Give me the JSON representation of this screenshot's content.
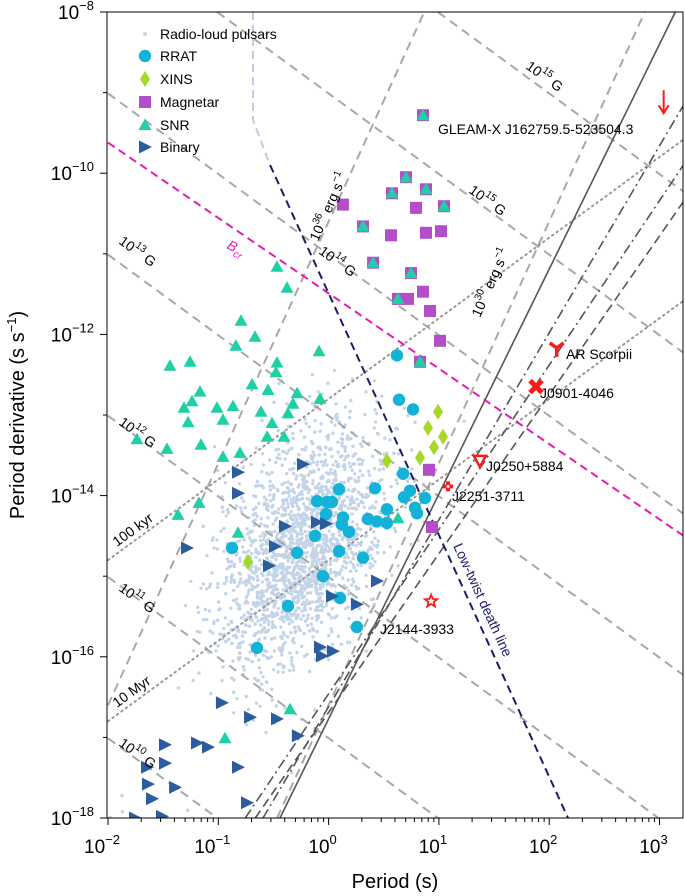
{
  "chart_data": {
    "type": "scatter",
    "xlabel": "Period (s)",
    "ylabel": {
      "base": "Period derivative (s s",
      "exp": "−1",
      "close": ")"
    },
    "x_scale": "log",
    "y_scale": "log",
    "xlim_log10": [
      -2,
      3.22
    ],
    "ylim_log10": [
      -18,
      -8
    ],
    "x_ticks": [
      {
        "base": "10",
        "exp": "−2",
        "v": -2
      },
      {
        "base": "10",
        "exp": "−1",
        "v": -1
      },
      {
        "base": "10",
        "exp": "0",
        "v": 0
      },
      {
        "base": "10",
        "exp": "1",
        "v": 1
      },
      {
        "base": "10",
        "exp": "2",
        "v": 2
      },
      {
        "base": "10",
        "exp": "3",
        "v": 3
      }
    ],
    "y_ticks": [
      {
        "base": "10",
        "exp": "−8",
        "v": -8
      },
      {
        "base": "10",
        "exp": "−10",
        "v": -10
      },
      {
        "base": "10",
        "exp": "−12",
        "v": -12
      },
      {
        "base": "10",
        "exp": "−14",
        "v": -14
      },
      {
        "base": "10",
        "exp": "−16",
        "v": -16
      },
      {
        "base": "10",
        "exp": "−18",
        "v": -18
      }
    ],
    "legend": {
      "placement": "top-left",
      "entries": [
        {
          "key": "pulsars",
          "label": "Radio-loud pulsars"
        },
        {
          "key": "rrat",
          "label": "RRAT"
        },
        {
          "key": "xins",
          "label": "XINS"
        },
        {
          "key": "magnetar",
          "label": "Magnetar"
        },
        {
          "key": "snr",
          "label": "SNR"
        },
        {
          "key": "binary",
          "label": "Binary"
        }
      ]
    },
    "colors": {
      "pulsars": "#c3d4e8",
      "rrat": "#13b3d8",
      "xins": "#a6d82a",
      "magnetar": "#b24fc8",
      "snr": "#1fd0a6",
      "binary": "#2b5d9e",
      "special": "#ff1a1a",
      "deathline": "#1c1c6b",
      "bcr": "#e41bb5",
      "guide": "#a8a8a8",
      "death_dark": "#555555"
    },
    "radio_pulsars_distribution": {
      "note_count": 1900,
      "main": {
        "logP_mean": -0.25,
        "logP_sd": 0.38,
        "logPdot_mean": -14.65,
        "logPdot_sd": 0.75,
        "corr": 0.45
      },
      "msp": {
        "count": 60,
        "logP_mean": -2.4,
        "logP_sd": 0.3,
        "logPdot_mean": -19.3,
        "logPdot_sd": 0.6
      }
    },
    "series_log10": {
      "rrat": [
        [
          0.62,
          -12.26
        ],
        [
          0.638,
          -12.81
        ],
        [
          0.765,
          -12.93
        ],
        [
          0.675,
          -13.73
        ],
        [
          0.738,
          -13.94
        ],
        [
          0.684,
          -14.02
        ],
        [
          0.874,
          -14.03
        ],
        [
          0.783,
          -14.15
        ],
        [
          0.801,
          -14.22
        ],
        [
          0.529,
          -14.17
        ],
        [
          0.421,
          -13.91
        ],
        [
          0.094,
          -13.92
        ],
        [
          -0.105,
          -14.07
        ],
        [
          -0.015,
          -14.08
        ],
        [
          0.031,
          -14.08
        ],
        [
          -0.024,
          -14.23
        ],
        [
          0.131,
          -14.27
        ],
        [
          0.121,
          -14.36
        ],
        [
          0.185,
          -14.45
        ],
        [
          0.357,
          -14.29
        ],
        [
          0.439,
          -14.32
        ],
        [
          0.529,
          -14.34
        ],
        [
          -0.123,
          -14.5
        ],
        [
          -0.876,
          -14.65
        ],
        [
          -0.286,
          -14.71
        ],
        [
          0.094,
          -14.69
        ],
        [
          0.312,
          -14.77
        ],
        [
          -0.051,
          -15.0
        ],
        [
          0.103,
          -15.27
        ],
        [
          -0.368,
          -15.37
        ],
        [
          0.257,
          -15.63
        ],
        [
          -0.649,
          -15.89
        ]
      ],
      "xins": [
        [
          0.992,
          -12.96
        ],
        [
          0.901,
          -13.16
        ],
        [
          1.037,
          -13.27
        ],
        [
          0.956,
          -13.4
        ],
        [
          0.829,
          -13.53
        ],
        [
          0.529,
          -13.57
        ],
        [
          -0.731,
          -14.82
        ]
      ],
      "magnetar": [
        [
          0.856,
          -9.28
        ],
        [
          0.702,
          -10.05
        ],
        [
          0.575,
          -10.25
        ],
        [
          0.883,
          -10.2
        ],
        [
          0.13,
          -10.39
        ],
        [
          0.792,
          -10.43
        ],
        [
          1.046,
          -10.41
        ],
        [
          0.312,
          -10.66
        ],
        [
          0.566,
          -10.77
        ],
        [
          0.883,
          -10.74
        ],
        [
          1.019,
          -10.72
        ],
        [
          0.403,
          -11.11
        ],
        [
          0.747,
          -11.24
        ],
        [
          0.856,
          -11.47
        ],
        [
          0.629,
          -11.56
        ],
        [
          0.72,
          -11.56
        ],
        [
          0.919,
          -11.71
        ],
        [
          1.01,
          -12.08
        ],
        [
          0.829,
          -12.34
        ],
        [
          0.91,
          -13.68
        ],
        [
          0.937,
          -14.39
        ]
      ],
      "snr": [
        [
          0.856,
          -9.28
        ],
        [
          0.702,
          -10.05
        ],
        [
          0.575,
          -10.25
        ],
        [
          0.883,
          -10.2
        ],
        [
          1.046,
          -10.41
        ],
        [
          0.312,
          -10.66
        ],
        [
          0.403,
          -11.11
        ],
        [
          0.747,
          -11.24
        ],
        [
          0.629,
          -11.56
        ],
        [
          0.829,
          -12.34
        ],
        [
          -0.468,
          -11.16
        ],
        [
          -0.377,
          -11.42
        ],
        [
          -0.794,
          -11.83
        ],
        [
          -0.667,
          -12.03
        ],
        [
          -0.84,
          -12.14
        ],
        [
          -0.087,
          -12.21
        ],
        [
          -1.438,
          -12.39
        ],
        [
          -1.256,
          -12.34
        ],
        [
          -0.468,
          -12.35
        ],
        [
          -0.477,
          -12.47
        ],
        [
          -0.694,
          -12.62
        ],
        [
          -0.549,
          -12.69
        ],
        [
          -1.166,
          -12.71
        ],
        [
          -0.286,
          -12.73
        ],
        [
          -1.238,
          -12.83
        ],
        [
          -1.311,
          -12.91
        ],
        [
          -0.078,
          -12.8
        ],
        [
          -0.323,
          -12.86
        ],
        [
          -1.012,
          -12.91
        ],
        [
          -0.867,
          -12.89
        ],
        [
          -0.613,
          -12.96
        ],
        [
          -0.368,
          -12.98
        ],
        [
          -0.957,
          -13.06
        ],
        [
          -1.274,
          -13.09
        ],
        [
          -0.513,
          -13.1
        ],
        [
          -1.737,
          -13.3
        ],
        [
          -1.465,
          -13.42
        ],
        [
          -1.157,
          -13.37
        ],
        [
          -0.558,
          -13.27
        ],
        [
          -0.404,
          -13.27
        ],
        [
          -0.957,
          -13.52
        ],
        [
          -0.803,
          -13.47
        ],
        [
          -1.175,
          -14.09
        ],
        [
          -1.365,
          -14.24
        ],
        [
          -0.821,
          -14.46
        ],
        [
          -0.35,
          -16.65
        ],
        [
          -0.939,
          -17.01
        ],
        [
          0.629,
          -14.28
        ]
      ],
      "binary": [
        [
          -0.821,
          -13.71
        ],
        [
          -0.821,
          -13.97
        ],
        [
          -0.232,
          -13.61
        ],
        [
          -1.284,
          -14.65
        ],
        [
          -0.395,
          -14.38
        ],
        [
          -0.105,
          -14.33
        ],
        [
          -0.024,
          -14.35
        ],
        [
          -0.486,
          -14.63
        ],
        [
          -0.54,
          -14.87
        ],
        [
          0.439,
          -15.06
        ],
        [
          0.031,
          -15.25
        ],
        [
          0.257,
          -15.35
        ],
        [
          -0.078,
          -15.88
        ],
        [
          0.04,
          -15.93
        ],
        [
          -0.06,
          -15.99
        ],
        [
          -0.967,
          -16.57
        ],
        [
          -0.713,
          -16.75
        ],
        [
          -0.468,
          -16.77
        ],
        [
          -0.278,
          -16.98
        ],
        [
          -1.193,
          -17.07
        ],
        [
          -1.093,
          -17.12
        ],
        [
          -1.483,
          -17.09
        ],
        [
          -1.483,
          -17.32
        ],
        [
          -1.646,
          -17.37
        ],
        [
          -0.821,
          -17.37
        ],
        [
          -1.637,
          -17.58
        ],
        [
          -1.392,
          -17.62
        ],
        [
          -1.601,
          -17.76
        ],
        [
          -0.74,
          -17.81
        ],
        [
          -1.51,
          -17.98
        ],
        [
          -1.755,
          -18.0
        ]
      ]
    },
    "special_sources": [
      {
        "name": "GLEAM-X J162759.5-523504.3",
        "period_s": 1091,
        "pdot": 1.2e-09,
        "marker": "upper-limit-arrow"
      },
      {
        "name": "AR Scorpii",
        "period_s": 117,
        "pdot": 6.8e-13,
        "marker": "tri-down-y"
      },
      {
        "name": "J0901-4046",
        "period_s": 76,
        "pdot": 2.25e-13,
        "marker": "x"
      },
      {
        "name": "J0250+5884",
        "period_s": 23.5,
        "pdot": 2.7e-14,
        "marker": "triangle-down-open"
      },
      {
        "name": "J2251-3711",
        "period_s": 12.1,
        "pdot": 1.3e-14,
        "marker": "plus-open"
      },
      {
        "name": "J2144-3933",
        "period_s": 8.5,
        "pdot": 4.9e-16,
        "marker": "star-open"
      }
    ],
    "reference_lines": {
      "magnetic_field_log10_G": [
        10,
        11,
        12,
        13,
        14,
        15,
        16
      ],
      "spin_down_luminosity_log10_erg_s": [
        36,
        30
      ],
      "characteristic_age": [
        "100 kyr",
        "10 Myr"
      ],
      "critical_field_line": {
        "label_base": "B",
        "label_sub": "cr",
        "a": -11.49,
        "b": -0.935
      },
      "low_twist_death_line": {
        "label": "Low-twist death line",
        "a": -11.49,
        "b": -3
      },
      "death_lines": [
        {
          "style": "solid",
          "a": -16.77,
          "b": 2.79
        },
        {
          "style": "dashdot",
          "a": -16.62,
          "b": 2.32
        },
        {
          "style": "dashdot",
          "a": -16.46,
          "b": 2.04
        },
        {
          "style": "dashed",
          "a": -16.69,
          "b": 1.97
        }
      ]
    },
    "line_labels": [
      {
        "base": "10",
        "exp": "13",
        "unit": " G"
      },
      {
        "base": "10",
        "exp": "12",
        "unit": " G"
      },
      {
        "base": "10",
        "exp": "11",
        "unit": " G"
      },
      {
        "base": "10",
        "exp": "10",
        "unit": " G"
      },
      {
        "base": "10",
        "exp": "14",
        "unit": " G"
      },
      {
        "base": "10",
        "exp": "15",
        "unit": " G"
      },
      {
        "base": "10",
        "exp": "15",
        "unit": " G"
      },
      {
        "base": "10",
        "exp": "36",
        "unit": " erg s",
        "exp2": "−1"
      },
      {
        "base": "10",
        "exp": "30",
        "unit": " erg s",
        "exp2": "−1"
      },
      {
        "base": "100 kyr",
        "exp": "",
        "unit": ""
      },
      {
        "base": "10 Myr",
        "exp": "",
        "unit": ""
      }
    ]
  }
}
